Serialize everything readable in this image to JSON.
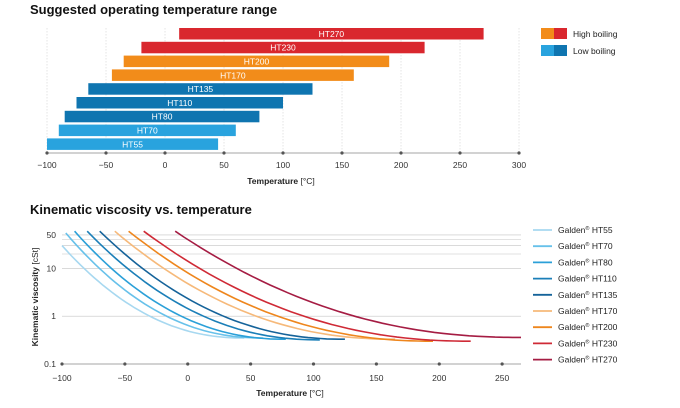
{
  "chart_data": [
    {
      "type": "bar",
      "orientation": "horizontal-range",
      "title": "Suggested operating temperature range",
      "xlabel_prefix": "Temperature",
      "xlabel_unit": "[°C]",
      "xlim": [
        -100,
        300
      ],
      "xticks": [
        -100,
        -50,
        0,
        50,
        100,
        150,
        200,
        250,
        300
      ],
      "xtick_labels": [
        "−100",
        "−50",
        "0",
        "50",
        "100",
        "150",
        "200",
        "250",
        "300"
      ],
      "legend": [
        {
          "label": "High boiling",
          "colors": [
            "#f28c1a",
            "#d9272e"
          ]
        },
        {
          "label": "Low boiling",
          "colors": [
            "#29a3de",
            "#0f75b0"
          ]
        }
      ],
      "bars": [
        {
          "label": "HT270",
          "min": 12,
          "max": 270,
          "color": "#d9272e"
        },
        {
          "label": "HT230",
          "min": -20,
          "max": 220,
          "color": "#d9272e"
        },
        {
          "label": "HT200",
          "min": -35,
          "max": 190,
          "color": "#f28c1a"
        },
        {
          "label": "HT170",
          "min": -45,
          "max": 160,
          "color": "#f28c1a"
        },
        {
          "label": "HT135",
          "min": -65,
          "max": 125,
          "color": "#0f75b0"
        },
        {
          "label": "HT110",
          "min": -75,
          "max": 100,
          "color": "#0f75b0"
        },
        {
          "label": "HT80",
          "min": -85,
          "max": 80,
          "color": "#0f75b0"
        },
        {
          "label": "HT70",
          "min": -90,
          "max": 60,
          "color": "#29a3de"
        },
        {
          "label": "HT55",
          "min": -100,
          "max": 45,
          "color": "#29a3de"
        }
      ]
    },
    {
      "type": "line",
      "title": "Kinematic viscosity vs. temperature",
      "xlabel_prefix": "Temperature",
      "xlabel_unit": "[°C]",
      "ylabel_prefix": "Kinematic viscosity",
      "ylabel_unit": "[cSt]",
      "yscale": "log",
      "xlim": [
        -100,
        265
      ],
      "ylim": [
        0.1,
        70
      ],
      "xticks": [
        -100,
        -50,
        0,
        50,
        100,
        150,
        200,
        250
      ],
      "xtick_labels": [
        "−100",
        "−50",
        "0",
        "50",
        "100",
        "150",
        "200",
        "250"
      ],
      "yticks": [
        0.1,
        1,
        10,
        50
      ],
      "ytick_labels": [
        "0.1",
        "1",
        "10",
        "50"
      ],
      "gridlines_y": [
        1,
        10,
        20,
        30,
        40,
        50
      ],
      "series": [
        {
          "name": "Galden",
          "model": "HT55",
          "color": "#a7d8f0",
          "x": [
            -100,
            45
          ],
          "y": [
            30,
            0.35
          ]
        },
        {
          "name": "Galden",
          "model": "HT70",
          "color": "#67c1ea",
          "x": [
            -97,
            60
          ],
          "y": [
            55,
            0.35
          ]
        },
        {
          "name": "Galden",
          "model": "HT80",
          "color": "#2ba0d8",
          "x": [
            -90,
            78
          ],
          "y": [
            60,
            0.33
          ]
        },
        {
          "name": "Galden",
          "model": "HT110",
          "color": "#1b7fb8",
          "x": [
            -80,
            105
          ],
          "y": [
            60,
            0.32
          ]
        },
        {
          "name": "Galden",
          "model": "HT135",
          "color": "#15639a",
          "x": [
            -70,
            125
          ],
          "y": [
            60,
            0.33
          ]
        },
        {
          "name": "Galden",
          "model": "HT170",
          "color": "#f6b97a",
          "x": [
            -58,
            165
          ],
          "y": [
            60,
            0.33
          ]
        },
        {
          "name": "Galden",
          "model": "HT200",
          "color": "#ee861d",
          "x": [
            -47,
            195
          ],
          "y": [
            60,
            0.3
          ]
        },
        {
          "name": "Galden",
          "model": "HT230",
          "color": "#cf2a36",
          "x": [
            -35,
            225
          ],
          "y": [
            60,
            0.3
          ]
        },
        {
          "name": "Galden",
          "model": "HT270",
          "color": "#a51c43",
          "x": [
            -10,
            265
          ],
          "y": [
            60,
            0.36
          ]
        }
      ]
    }
  ]
}
